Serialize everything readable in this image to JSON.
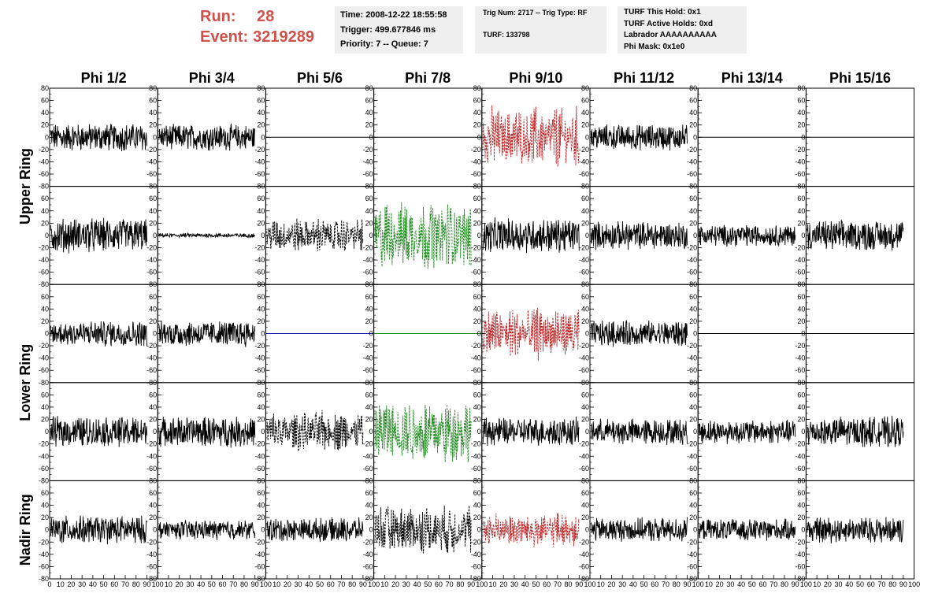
{
  "header": {
    "run_label": "Run:",
    "run_value": "28",
    "event_label": "Event:",
    "event_value": "3219289",
    "time": "Time: 2008-12-22 18:55:58",
    "trigger": "Trigger: 499.677846 ms",
    "priority": "Priority: 7 -- Queue: 7",
    "trig_num": "Trig Num: 2717 -- Trig Type: RF",
    "turf": "TURF: 133798",
    "turf_this_hold": "TURF This Hold: 0x1",
    "turf_active_holds": "TURF Active Holds: 0xd",
    "labrador": "Labrador AAAAAAAAAA",
    "phi_mask": "Phi Mask: 0x1e0"
  },
  "chart_data": {
    "type": "line",
    "columns": [
      "Phi 1/2",
      "Phi 3/4",
      "Phi 5/6",
      "Phi 7/8",
      "Phi 9/10",
      "Phi 11/12",
      "Phi 13/14",
      "Phi 15/16"
    ],
    "ring_labels": [
      {
        "label": "Upper Ring",
        "rows": [
          0,
          1
        ]
      },
      {
        "label": "Lower Ring",
        "rows": [
          2,
          3
        ]
      },
      {
        "label": "Nadir Ring",
        "rows": [
          4,
          4
        ]
      }
    ],
    "xlim": [
      0,
      100
    ],
    "ylim": [
      -80,
      80
    ],
    "x_ticks": [
      0,
      10,
      20,
      30,
      40,
      50,
      60,
      70,
      80,
      90,
      100
    ],
    "y_ticks": [
      -80,
      -60,
      -40,
      -20,
      0,
      20,
      40,
      60,
      80
    ],
    "colors": {
      "black": "#000000",
      "red": "#c0282a",
      "green": "#1f8a1f",
      "blue": "#1a1aa8"
    },
    "grid": false,
    "waveforms_approx_amplitude_and_style": [
      [
        {
          "amp": 13,
          "color": "black",
          "style": "solid"
        },
        {
          "amp": 12,
          "color": "black",
          "style": "solid"
        },
        {
          "amp": 0,
          "color": "black",
          "style": "solid"
        },
        {
          "amp": 0,
          "color": "black",
          "style": "solid"
        },
        {
          "amp": 30,
          "color": "red",
          "style": "dashed"
        },
        {
          "amp": 12,
          "color": "black",
          "style": "solid"
        },
        {
          "amp": 0,
          "color": "black",
          "style": "solid"
        },
        {
          "amp": 0,
          "color": "black",
          "style": "solid"
        }
      ],
      [
        {
          "amp": 16,
          "color": "black",
          "style": "solid"
        },
        {
          "amp": 2,
          "color": "black",
          "style": "solid"
        },
        {
          "amp": 17,
          "color": "black",
          "style": "dashed"
        },
        {
          "amp": 34,
          "color": "green",
          "style": "dashed"
        },
        {
          "amp": 16,
          "color": "black",
          "style": "solid"
        },
        {
          "amp": 13,
          "color": "black",
          "style": "solid"
        },
        {
          "amp": 10,
          "color": "black",
          "style": "solid"
        },
        {
          "amp": 14,
          "color": "black",
          "style": "solid"
        }
      ],
      [
        {
          "amp": 12,
          "color": "black",
          "style": "solid"
        },
        {
          "amp": 12,
          "color": "black",
          "style": "solid"
        },
        {
          "amp": 0,
          "color": "blue",
          "style": "solid"
        },
        {
          "amp": 0,
          "color": "green",
          "style": "solid"
        },
        {
          "amp": 26,
          "color": "red",
          "style": "dashed"
        },
        {
          "amp": 12,
          "color": "black",
          "style": "solid"
        },
        {
          "amp": 0,
          "color": "black",
          "style": "solid"
        },
        {
          "amp": 0,
          "color": "black",
          "style": "solid"
        }
      ],
      [
        {
          "amp": 14,
          "color": "black",
          "style": "solid"
        },
        {
          "amp": 14,
          "color": "black",
          "style": "solid"
        },
        {
          "amp": 20,
          "color": "black",
          "style": "dashed"
        },
        {
          "amp": 32,
          "color": "green",
          "style": "dashed"
        },
        {
          "amp": 13,
          "color": "black",
          "style": "solid"
        },
        {
          "amp": 12,
          "color": "black",
          "style": "solid"
        },
        {
          "amp": 11,
          "color": "black",
          "style": "solid"
        },
        {
          "amp": 14,
          "color": "black",
          "style": "solid"
        }
      ],
      [
        {
          "amp": 13,
          "color": "black",
          "style": "solid"
        },
        {
          "amp": 9,
          "color": "black",
          "style": "solid"
        },
        {
          "amp": 11,
          "color": "black",
          "style": "solid"
        },
        {
          "amp": 24,
          "color": "black",
          "style": "dashed"
        },
        {
          "amp": 17,
          "color": "red",
          "style": "dashed"
        },
        {
          "amp": 11,
          "color": "black",
          "style": "solid"
        },
        {
          "amp": 10,
          "color": "black",
          "style": "solid"
        },
        {
          "amp": 12,
          "color": "black",
          "style": "solid"
        }
      ]
    ]
  }
}
